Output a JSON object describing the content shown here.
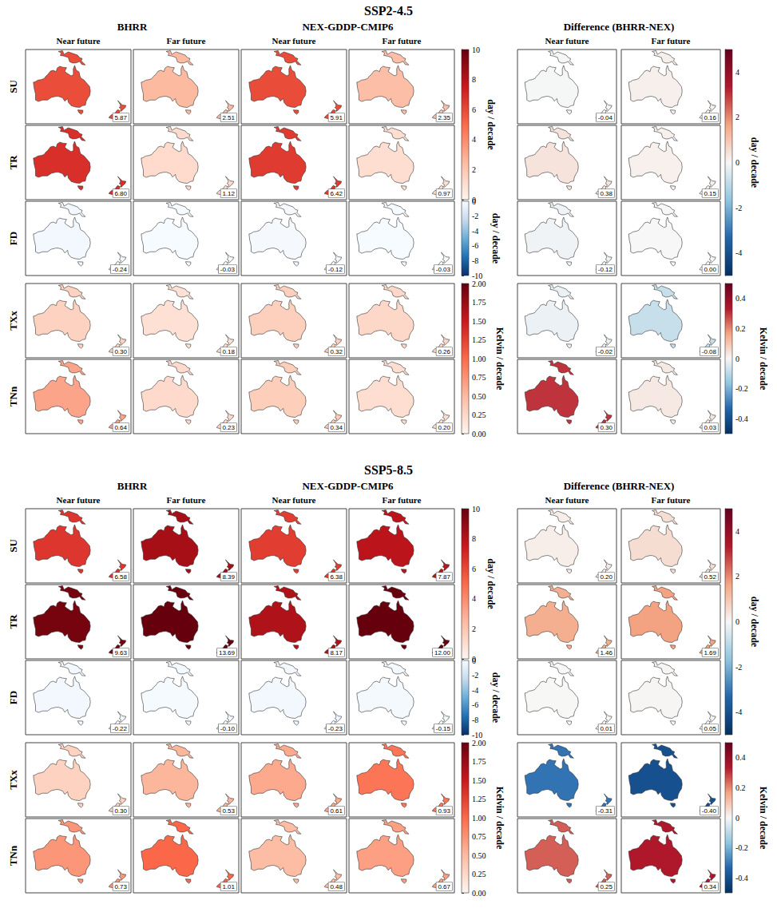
{
  "chart_data": {
    "type": "map",
    "model_labels": [
      "BHRR",
      "NEX-GDDP-CMIP6"
    ],
    "difference_label": "Difference (BHRR-NEX)",
    "period_labels": [
      "Near future",
      "Far future"
    ],
    "colorbars": {
      "main": [
        {
          "title": "day / decade",
          "rows": [
            "SU",
            "TR"
          ],
          "range": [
            0,
            10
          ],
          "ticks": [
            0,
            2,
            4,
            6,
            8,
            10
          ],
          "colors": [
            "#fff5f0",
            "#fcbba1",
            "#fb6a4a",
            "#cb181d",
            "#67000d"
          ]
        },
        {
          "title": "day / decade",
          "rows": [
            "FD"
          ],
          "range": [
            -10,
            0
          ],
          "ticks": [
            0,
            -2,
            -4,
            -6,
            -8,
            -10
          ],
          "colors": [
            "#08306b",
            "#2171b5",
            "#6baed6",
            "#c6dbef",
            "#f7fbff"
          ]
        },
        {
          "title": "Kelvin / decade",
          "rows": [
            "TXx",
            "TNn"
          ],
          "range": [
            0,
            2
          ],
          "ticks": [
            {
              "value": 0,
              "label": "0.00"
            },
            {
              "value": 0.25,
              "label": "0.25"
            },
            {
              "value": 0.5,
              "label": "0.50"
            },
            {
              "value": 0.75,
              "label": "0.75"
            },
            {
              "value": 1,
              "label": "1.00"
            },
            {
              "value": 1.25,
              "label": "1.25"
            },
            {
              "value": 1.5,
              "label": "1.50"
            },
            {
              "value": 1.75,
              "label": "1.75"
            },
            {
              "value": 2,
              "label": "2.00"
            }
          ],
          "colors": [
            "#fff5f0",
            "#fcbba1",
            "#fb6a4a",
            "#cb181d",
            "#67000d"
          ]
        }
      ],
      "difference": [
        {
          "title": "day / decade",
          "rows": [
            "SU",
            "TR",
            "FD"
          ],
          "range": [
            -5,
            5
          ],
          "ticks": [
            -4,
            -2,
            0,
            2,
            4
          ],
          "colors": [
            "#053061",
            "#2166ac",
            "#92c5de",
            "#f7f7f7",
            "#f4a582",
            "#b2182b",
            "#67001f"
          ]
        },
        {
          "title": "Kelvin / decade",
          "rows": [
            "TXx",
            "TNn"
          ],
          "range": [
            -0.5,
            0.5
          ],
          "ticks": [
            -0.4,
            -0.2,
            0,
            0.2,
            0.4
          ],
          "colors": [
            "#053061",
            "#2166ac",
            "#92c5de",
            "#f7f7f7",
            "#f4a582",
            "#b2182b",
            "#67001f"
          ]
        }
      ]
    },
    "scenarios": [
      {
        "title": "SSP2-4.5",
        "rows": [
          {
            "name": "SU",
            "values": [
              5.87,
              2.51,
              5.91,
              2.35
            ],
            "value_labels": [
              "5.87",
              "2.51",
              "5.91",
              "2.35"
            ],
            "difference_values": [
              -0.04,
              0.16
            ],
            "difference_value_labels": [
              "-0.04",
              "0.16"
            ]
          },
          {
            "name": "TR",
            "values": [
              6.8,
              1.12,
              6.42,
              0.97
            ],
            "value_labels": [
              "6.80",
              "1.12",
              "6.42",
              "0.97"
            ],
            "difference_values": [
              0.38,
              0.15
            ],
            "difference_value_labels": [
              "0.38",
              "0.15"
            ]
          },
          {
            "name": "FD",
            "values": [
              -0.24,
              -0.03,
              -0.12,
              -0.03
            ],
            "value_labels": [
              "-0.24",
              "-0.03",
              "-0.12",
              "-0.03"
            ],
            "difference_values": [
              -0.12,
              0
            ],
            "difference_value_labels": [
              "-0.12",
              "0.00"
            ]
          },
          {
            "name": "TXx",
            "values": [
              0.3,
              0.18,
              0.32,
              0.26
            ],
            "value_labels": [
              "0.30",
              "0.18",
              "0.32",
              "0.26"
            ],
            "difference_values": [
              -0.02,
              -0.08
            ],
            "difference_value_labels": [
              "-0.02",
              "-0.08"
            ]
          },
          {
            "name": "TNn",
            "values": [
              0.64,
              0.23,
              0.34,
              0.2
            ],
            "value_labels": [
              "0.64",
              "0.23",
              "0.34",
              "0.20"
            ],
            "difference_values": [
              0.3,
              0.03
            ],
            "difference_value_labels": [
              "0.30",
              "0.03"
            ]
          }
        ]
      },
      {
        "title": "SSP5-8.5",
        "rows": [
          {
            "name": "SU",
            "values": [
              6.58,
              8.39,
              6.38,
              7.87
            ],
            "value_labels": [
              "6.58",
              "8.39",
              "6.38",
              "7.87"
            ],
            "difference_values": [
              0.2,
              0.52
            ],
            "difference_value_labels": [
              "0.20",
              "0.52"
            ]
          },
          {
            "name": "TR",
            "values": [
              9.63,
              13.69,
              8.17,
              12
            ],
            "value_labels": [
              "9.63",
              "13.69",
              "8.17",
              "12.00"
            ],
            "difference_values": [
              1.46,
              1.69
            ],
            "difference_value_labels": [
              "1.46",
              "1.69"
            ]
          },
          {
            "name": "FD",
            "values": [
              -0.22,
              -0.1,
              -0.23,
              -0.15
            ],
            "value_labels": [
              "-0.22",
              "-0.10",
              "-0.23",
              "-0.15"
            ],
            "difference_values": [
              0.01,
              0.05
            ],
            "difference_value_labels": [
              "0.01",
              "0.05"
            ]
          },
          {
            "name": "TXx",
            "values": [
              0.3,
              0.53,
              0.61,
              0.93
            ],
            "value_labels": [
              "0.30",
              "0.53",
              "0.61",
              "0.93"
            ],
            "difference_values": [
              -0.31,
              -0.4
            ],
            "difference_value_labels": [
              "-0.31",
              "-0.40"
            ]
          },
          {
            "name": "TNn",
            "values": [
              0.73,
              1.01,
              0.48,
              0.67
            ],
            "value_labels": [
              "0.73",
              "1.01",
              "0.48",
              "0.67"
            ],
            "difference_values": [
              0.25,
              0.34
            ],
            "difference_value_labels": [
              "0.25",
              "0.34"
            ]
          }
        ]
      }
    ]
  }
}
